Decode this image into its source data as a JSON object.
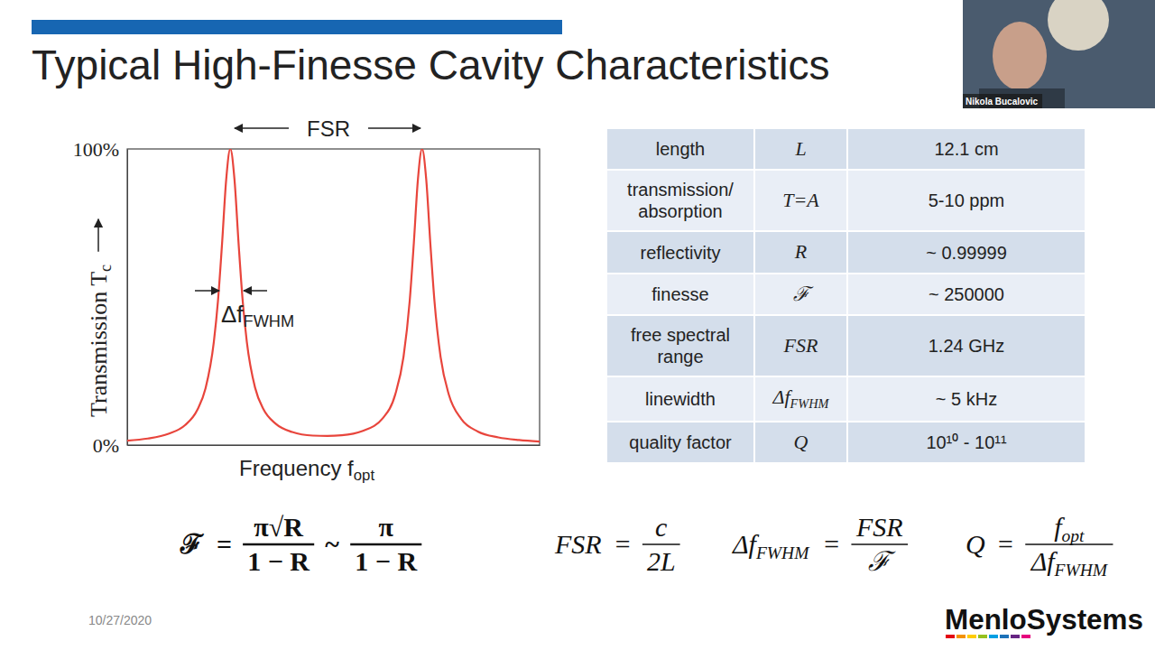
{
  "title": "Typical High-Finesse Cavity Characteristics",
  "chart_data": {
    "type": "line",
    "x": [
      0,
      5,
      10,
      14,
      17,
      19,
      21,
      22,
      23,
      24,
      25,
      26,
      27,
      28,
      29,
      31,
      33,
      36,
      40,
      45,
      48.5,
      52,
      57,
      62,
      65,
      67,
      68.5,
      69.5,
      70.5,
      71.5,
      72.5,
      73.5,
      74.5,
      76,
      78,
      81,
      85,
      90,
      95,
      100
    ],
    "values": [
      1.5,
      2.2,
      3.8,
      6.7,
      11.9,
      19.2,
      34.8,
      48.6,
      68.1,
      89.7,
      100,
      89.8,
      68.2,
      48.7,
      34.9,
      19.4,
      12.2,
      7.2,
      4.4,
      3.2,
      3.1,
      3.3,
      4.7,
      9.1,
      17.1,
      29.8,
      48.7,
      68.2,
      89.8,
      100,
      89.8,
      68.2,
      48.7,
      29.7,
      17.0,
      8.8,
      4.6,
      2.6,
      1.7,
      1.2
    ],
    "color": "#e8453c",
    "xlim": [
      0,
      100
    ],
    "xticks": [],
    "ylim": [
      0,
      100
    ],
    "yticks": [
      {
        "value": 0,
        "label": "0%"
      },
      {
        "value": 100,
        "label": "100%"
      }
    ],
    "tick_labels": "y",
    "x_label": [
      "Frequency ",
      {
        "base": "f",
        "sub": "opt"
      }
    ],
    "y_label": [
      "Transmission ",
      {
        "base": "T",
        "sub": "c"
      }
    ],
    "annotations": {
      "fsr": "FSR",
      "linewidth": {
        "base": "Δf",
        "sub": "FWHM"
      }
    }
  },
  "table": {
    "rows": [
      [
        "length",
        "L",
        "12.1 cm"
      ],
      [
        "transmission/ absorption",
        "T=A",
        "5-10 ppm"
      ],
      [
        "reflectivity",
        "R",
        "~ 0.99999"
      ],
      [
        "finesse",
        "ℱ",
        "~ 250000"
      ],
      [
        "free spectral range",
        "FSR",
        "1.24 GHz"
      ],
      [
        "linewidth",
        {
          "base": "Δf",
          "sub": "FWHM"
        },
        "~ 5 kHz"
      ],
      [
        "quality factor",
        "Q",
        "10¹⁰ - 10¹¹"
      ]
    ]
  },
  "formulas": [
    [
      "ℱ",
      "=",
      {
        "num": "π√R",
        "den": "1 − R"
      },
      "~",
      {
        "num": "π",
        "den": "1 − R"
      }
    ],
    [
      "FSR",
      "=",
      {
        "num": "c",
        "den": "2L"
      }
    ],
    [
      {
        "base": "Δf",
        "sub": "FWHM"
      },
      "=",
      {
        "num": "FSR",
        "den": "ℱ"
      }
    ],
    [
      "Q",
      "=",
      {
        "num": {
          "base": "f",
          "sub": "opt"
        },
        "den": {
          "base": "Δf",
          "sub": "FWHM"
        }
      }
    ]
  ],
  "date": "10/27/2020",
  "logo": "MenloSystems",
  "speaker": {
    "name": "Nikola Bucalovic"
  }
}
